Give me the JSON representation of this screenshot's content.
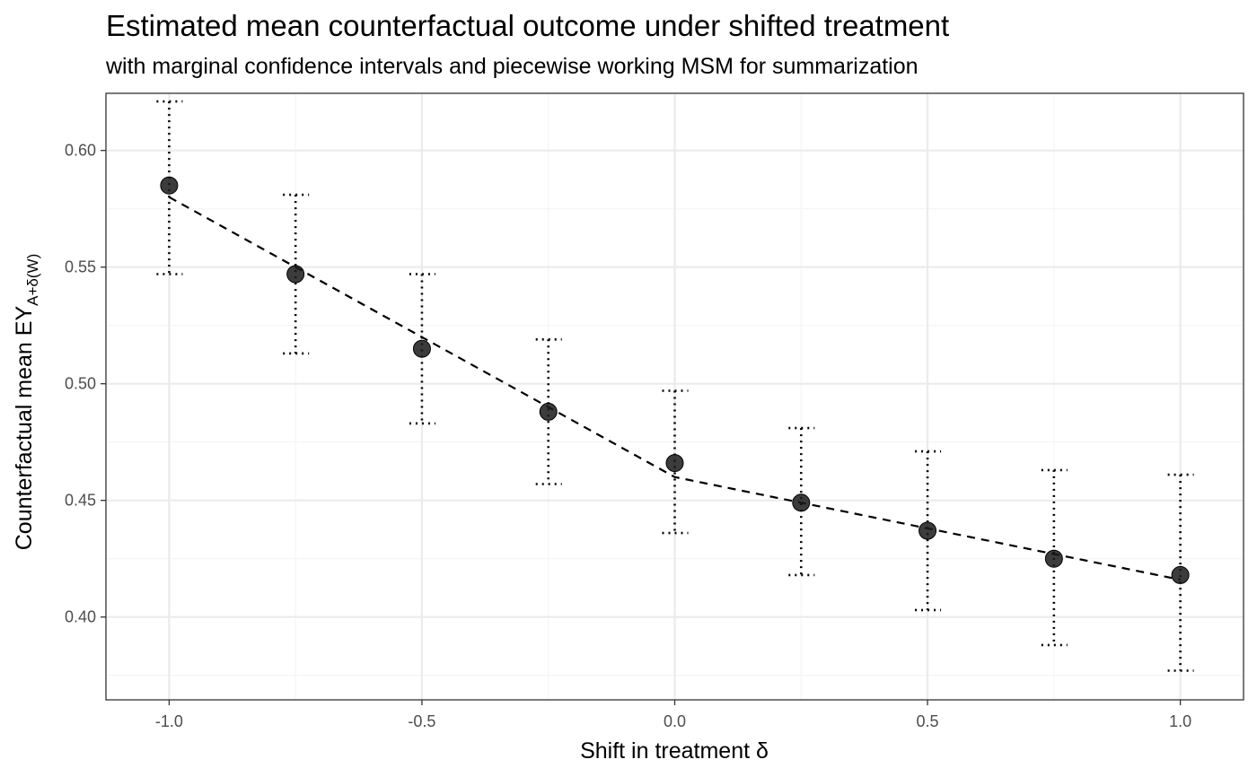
{
  "chart_data": {
    "type": "scatter",
    "title": "Estimated mean counterfactual outcome under shifted treatment",
    "subtitle": "with marginal confidence intervals and piecewise working MSM for summarization",
    "xlabel": "Shift in treatment δ",
    "ylabel": {
      "main": "Counterfactual mean EY",
      "subscript": "A+δ(W)"
    },
    "xlim": [
      -1.125,
      1.125
    ],
    "ylim": [
      0.3645,
      0.6245
    ],
    "x_ticks": [
      -1.0,
      -0.5,
      0.0,
      0.5,
      1.0
    ],
    "x_tick_labels": [
      "-1.0",
      "-0.5",
      "0.0",
      "0.5",
      "1.0"
    ],
    "y_ticks": [
      0.4,
      0.45,
      0.5,
      0.55,
      0.6
    ],
    "y_tick_labels": [
      "0.40",
      "0.45",
      "0.50",
      "0.55",
      "0.60"
    ],
    "grid": true,
    "series": [
      {
        "kind": "points_with_ci",
        "x": [
          -1.0,
          -0.75,
          -0.5,
          -0.25,
          0.0,
          0.25,
          0.5,
          0.75,
          1.0
        ],
        "y": [
          0.585,
          0.547,
          0.515,
          0.488,
          0.466,
          0.449,
          0.437,
          0.425,
          0.418
        ],
        "ci_lower": [
          0.547,
          0.513,
          0.483,
          0.457,
          0.436,
          0.418,
          0.403,
          0.388,
          0.377
        ],
        "ci_upper": [
          0.621,
          0.581,
          0.547,
          0.519,
          0.497,
          0.481,
          0.471,
          0.463,
          0.461
        ]
      },
      {
        "kind": "piecewise_msm_line",
        "x": [
          -1.0,
          0.0,
          1.0
        ],
        "y": [
          0.58,
          0.46,
          0.416
        ]
      }
    ],
    "colors": {
      "points": "#1a1a1a",
      "line": "#000000",
      "grid_major": "#ebebeb",
      "grid_minor": "#f5f5f5",
      "panel_border": "#333333",
      "tick_text": "#4d4d4d"
    }
  }
}
